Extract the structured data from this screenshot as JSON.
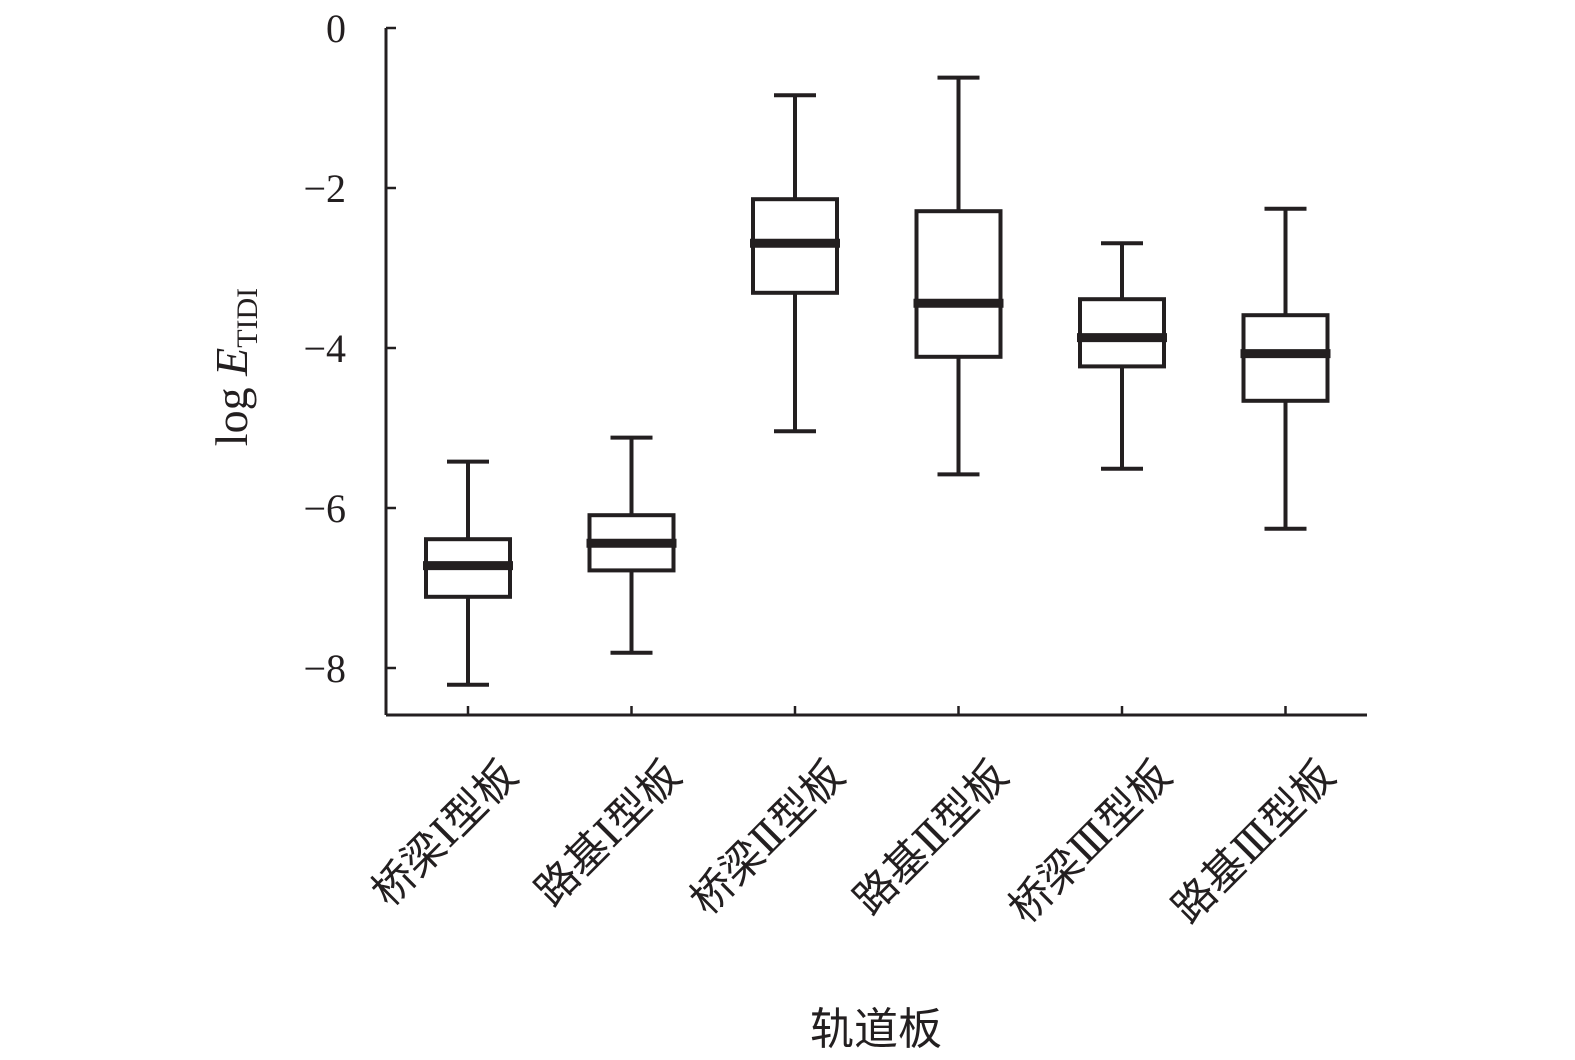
{
  "chart_data": {
    "type": "box",
    "xlabel": "轨道板",
    "ylabel": {
      "prefix": "log ",
      "symbol": "E",
      "subscript": "TIDI"
    },
    "ylim": [
      -8.55,
      0
    ],
    "yticks": [
      0,
      -2,
      -4,
      -6,
      -8
    ],
    "ytick_labels": [
      "0",
      "−2",
      "−4",
      "−6",
      "−8"
    ],
    "categories": [
      "桥梁Ⅰ型板",
      "路基Ⅰ型板",
      "桥梁Ⅱ型板",
      "路基Ⅱ型板",
      "桥梁Ⅲ型板",
      "路基Ⅲ型板"
    ],
    "boxes": [
      {
        "min": -8.21,
        "q1": -7.11,
        "median": -6.72,
        "q3": -6.39,
        "max": -5.42
      },
      {
        "min": -7.81,
        "q1": -6.78,
        "median": -6.44,
        "q3": -6.09,
        "max": -5.12
      },
      {
        "min": -5.04,
        "q1": -3.31,
        "median": -2.69,
        "q3": -2.14,
        "max": -0.84
      },
      {
        "min": -5.58,
        "q1": -4.11,
        "median": -3.44,
        "q3": -2.29,
        "max": -0.62
      },
      {
        "min": -5.51,
        "q1": -4.23,
        "median": -3.87,
        "q3": -3.39,
        "max": -2.69
      },
      {
        "min": -6.26,
        "q1": -4.66,
        "median": -4.07,
        "q3": -3.59,
        "max": -2.26
      }
    ],
    "grid": false,
    "legend": "none"
  }
}
